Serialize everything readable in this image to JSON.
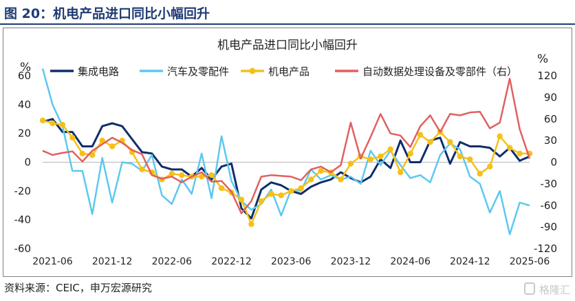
{
  "figure": {
    "title": "图 20：机电产品进口同比小幅回升",
    "source": "资料来源：CEIC，申万宏源研究",
    "watermark_text": "格隆汇",
    "header_color": "#1f3b73"
  },
  "chart_data": {
    "type": "line",
    "title": "机电产品进口同比小幅回升",
    "left_unit": "%",
    "right_unit": "%",
    "y_left": {
      "min": -60,
      "max": 60,
      "ticks": [
        -60,
        -40,
        -20,
        0,
        20,
        40,
        60
      ]
    },
    "y_right": {
      "min": -120,
      "max": 120,
      "ticks": [
        -120,
        -90,
        -60,
        -30,
        0,
        30,
        60,
        90,
        120
      ]
    },
    "x_tick_labels": [
      "2021-06",
      "2021-12",
      "2022-06",
      "2022-12",
      "2023-06",
      "2023-12",
      "2024-06",
      "2024-12",
      "2025-06"
    ],
    "x_range": [
      "2021-05",
      "2025-06"
    ],
    "grid": false,
    "legend": "top",
    "x": [
      "2021-05",
      "2021-06",
      "2021-07",
      "2021-08",
      "2021-09",
      "2021-10",
      "2021-11",
      "2021-12",
      "2022-01",
      "2022-02",
      "2022-03",
      "2022-04",
      "2022-05",
      "2022-06",
      "2022-07",
      "2022-08",
      "2022-09",
      "2022-10",
      "2022-11",
      "2022-12",
      "2023-01",
      "2023-02",
      "2023-03",
      "2023-04",
      "2023-05",
      "2023-06",
      "2023-07",
      "2023-08",
      "2023-09",
      "2023-10",
      "2023-11",
      "2023-12",
      "2024-01",
      "2024-02",
      "2024-03",
      "2024-04",
      "2024-05",
      "2024-06",
      "2024-07",
      "2024-08",
      "2024-09",
      "2024-10",
      "2024-11",
      "2024-12",
      "2025-01",
      "2025-02",
      "2025-03",
      "2025-04",
      "2025-05",
      "2025-06"
    ],
    "series": [
      {
        "name": "集成电路",
        "axis": "left",
        "color": "#0e2d6b",
        "marker": false,
        "values": [
          28,
          30,
          21,
          21,
          11,
          11,
          25,
          27,
          25,
          16,
          7,
          6,
          -3,
          -5,
          -5,
          -10,
          -4,
          -12,
          -3,
          -1,
          -32,
          -39,
          -19,
          -14,
          -16,
          -20,
          -22,
          -17,
          -14,
          -12,
          -7,
          -11,
          -14,
          -10,
          2,
          -4,
          15,
          0,
          0,
          15,
          17,
          -1,
          14,
          11,
          11,
          10,
          4,
          10,
          1,
          4
        ]
      },
      {
        "name": "汽车及零配件",
        "axis": "left",
        "color": "#5cc8f0",
        "marker": false,
        "values": [
          65,
          40,
          25,
          -6,
          -6,
          -36,
          3,
          -28,
          0,
          -1,
          -6,
          5,
          -23,
          -29,
          -12,
          -22,
          6,
          -25,
          18,
          -13,
          -27,
          -33,
          -29,
          -19,
          -37,
          -19,
          -20,
          -5,
          -12,
          -9,
          -12,
          -10,
          -15,
          8,
          -2,
          8,
          -2,
          -11,
          -9,
          -14,
          5,
          13,
          9,
          -10,
          -15,
          -35,
          -20,
          -50,
          -28,
          -30
        ]
      },
      {
        "name": "机电产品",
        "axis": "left",
        "color": "#f5c018",
        "marker": true,
        "values": [
          29,
          27,
          26,
          17,
          6,
          5,
          15,
          11,
          15,
          7,
          -5,
          -7,
          -12,
          -8,
          -9,
          -10,
          -10,
          -9,
          -18,
          -21,
          -26,
          -43,
          -27,
          -22,
          -23,
          -20,
          -18,
          -12,
          -6,
          -7,
          -12,
          -1,
          4,
          2,
          4,
          9,
          -7,
          6,
          19,
          14,
          21,
          14,
          4,
          2,
          -8,
          -3,
          18,
          10,
          6,
          6
        ]
      },
      {
        "name": "自动数据处理设备及零部件（右）",
        "axis": "right",
        "color": "#e0605e",
        "marker": false,
        "values": [
          16,
          10,
          13,
          15,
          1,
          16,
          25,
          34,
          27,
          17,
          11,
          -18,
          -23,
          -20,
          -28,
          -20,
          -14,
          -27,
          -26,
          -41,
          -71,
          -54,
          -20,
          -18,
          -19,
          -20,
          -25,
          -10,
          -6,
          -14,
          -4,
          55,
          5,
          35,
          67,
          40,
          37,
          21,
          50,
          65,
          42,
          67,
          65,
          69,
          70,
          47,
          55,
          116,
          46,
          5
        ]
      }
    ],
    "series_notes": "right-axis series also drawn at ~2025-03 = 46, 2025-04 = 46; values read from image"
  }
}
